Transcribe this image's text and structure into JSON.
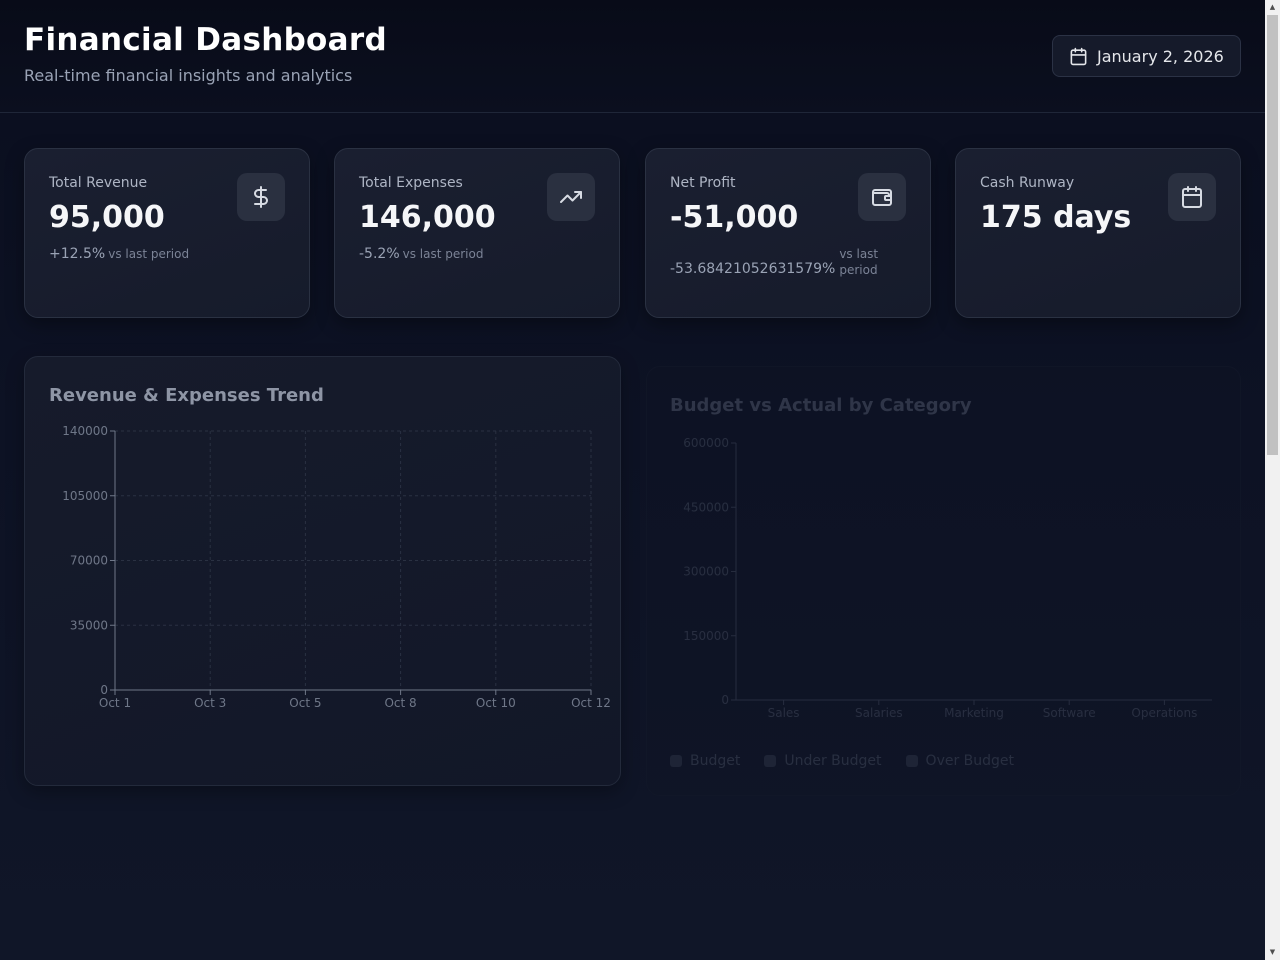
{
  "header": {
    "title": "Financial Dashboard",
    "subtitle": "Real-time financial insights and analytics",
    "date": "January 2, 2026"
  },
  "cards": [
    {
      "label": "Total Revenue",
      "value": "95,000",
      "change": "+12.5%",
      "vs": "vs last period",
      "icon": "dollar-icon"
    },
    {
      "label": "Total Expenses",
      "value": "146,000",
      "change": "-5.2%",
      "vs": "vs last period",
      "icon": "trending-up-icon"
    },
    {
      "label": "Net Profit",
      "value": "-51,000",
      "change": "-53.68421052631579%",
      "vs": "vs last period",
      "icon": "wallet-icon"
    },
    {
      "label": "Cash Runway",
      "value": "175 days",
      "icon": "calendar-icon"
    }
  ],
  "colors": {
    "background": "#0d1224",
    "card": "#1a1f30",
    "icon_box": "#2a3040"
  },
  "chart_data": [
    {
      "type": "line",
      "title": "Revenue & Expenses Trend",
      "x": [
        "Oct 1",
        "Oct 3",
        "Oct 5",
        "Oct 8",
        "Oct 10",
        "Oct 12"
      ],
      "yticks": [
        "0",
        "35000",
        "70000",
        "105000",
        "140000"
      ],
      "ylim": [
        0,
        140000
      ],
      "grid": true,
      "series": []
    },
    {
      "type": "bar",
      "title": "Budget vs Actual by Category",
      "categories": [
        "Sales",
        "Salaries",
        "Marketing",
        "Software",
        "Operations"
      ],
      "yticks": [
        "0",
        "150000",
        "300000",
        "450000",
        "600000"
      ],
      "ylim": [
        0,
        600000
      ],
      "legend": [
        "Budget",
        "Under Budget",
        "Over Budget"
      ],
      "legend_position": "bottom-left",
      "series": []
    }
  ]
}
